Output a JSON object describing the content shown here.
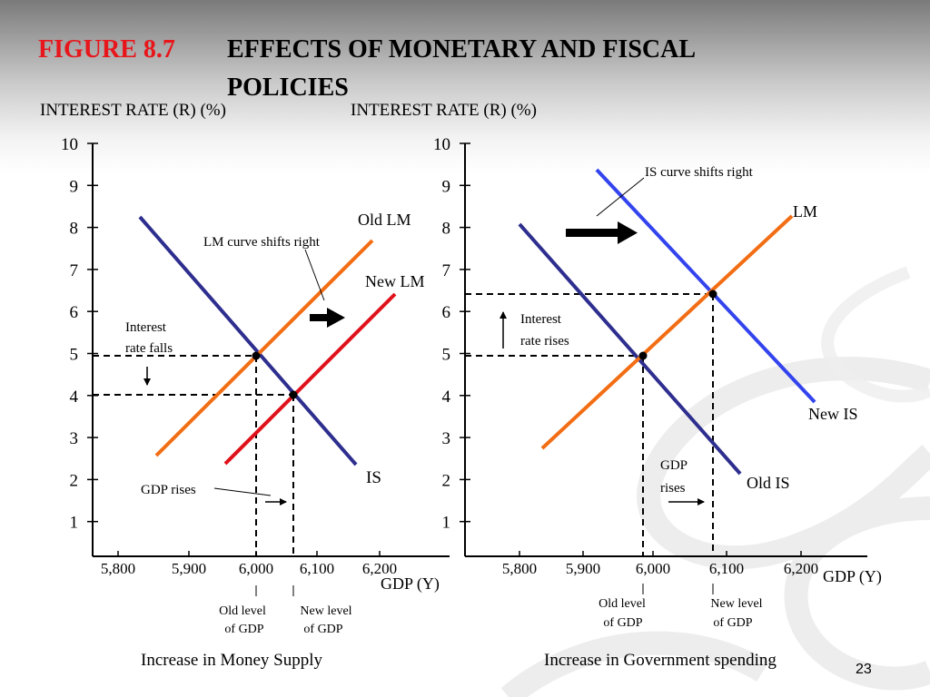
{
  "slide": {
    "figure_label": "FIGURE 8.7",
    "title_line1": "EFFECTS OF MONETARY AND FISCAL",
    "title_line2": "POLICIES",
    "slide_number": "23"
  },
  "colors": {
    "figure_label": "#e8161b",
    "is_curve": "#2e2e8f",
    "lm_curve": "#f26d13",
    "new_lm_curve": "#e0121b",
    "new_is_curve": "#3344ee"
  },
  "left_panel": {
    "y_axis_title": "INTEREST RATE (R) (%)",
    "x_axis_title": "GDP (Y)",
    "y_ticks": [
      "10",
      "9",
      "8",
      "7",
      "6",
      "5",
      "4",
      "3",
      "2",
      "1"
    ],
    "x_ticks": [
      "5,800",
      "5,900",
      "6,000",
      "6,100",
      "6,200"
    ],
    "curves": {
      "old_lm": "Old LM",
      "new_lm": "New LM",
      "is": "IS"
    },
    "annotations": {
      "lm_shift": "LM curve shifts right",
      "interest_line1": "Interest",
      "interest_line2": "rate falls",
      "gdp": "GDP rises",
      "old_level_line1": "Old level",
      "old_level_line2": "of GDP",
      "new_level_line1": "New level",
      "new_level_line2": "of GDP"
    },
    "equilibria": {
      "old": {
        "gdp": 6000,
        "rate": 5
      },
      "new": {
        "gdp": 6070,
        "rate": 4
      }
    },
    "caption": "Increase in Money Supply"
  },
  "right_panel": {
    "y_axis_title": "INTEREST RATE (R) (%)",
    "x_axis_title": "GDP (Y)",
    "y_ticks": [
      "10",
      "9",
      "8",
      "7",
      "6",
      "5",
      "4",
      "3",
      "2",
      "1"
    ],
    "x_ticks": [
      "5,800",
      "5,900",
      "6,000",
      "6,100",
      "6,200"
    ],
    "curves": {
      "lm": "LM",
      "new_is": "New IS",
      "old_is": "Old IS"
    },
    "annotations": {
      "is_shift": "IS curve shifts right",
      "interest_line1": "Interest",
      "interest_line2": "rate rises",
      "gdp_line1": "GDP",
      "gdp_line2": "rises",
      "old_level_line1": "Old level",
      "old_level_line2": "of GDP",
      "new_level_line1": "New level",
      "new_level_line2": "of GDP"
    },
    "equilibria": {
      "old": {
        "gdp": 6000,
        "rate": 5
      },
      "new": {
        "gdp": 6095,
        "rate": 6.45
      }
    },
    "caption": "Increase in Government spending"
  }
}
